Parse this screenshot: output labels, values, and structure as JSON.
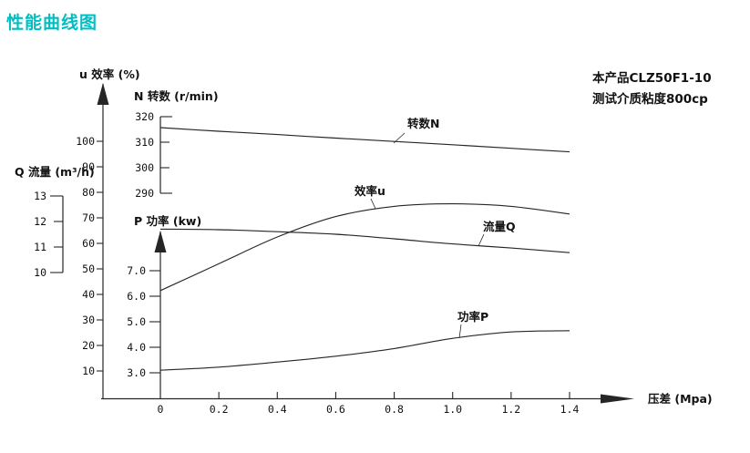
{
  "page": {
    "title": "性能曲线图",
    "title_color": "#00bec2"
  },
  "info": {
    "product": "本产品CLZ50F1-10",
    "medium": "测试介质粘度800cp"
  },
  "chart_data": {
    "type": "line",
    "title": "性能曲线图",
    "grid": false,
    "legend": "inline-labels",
    "x_axis": {
      "label": "压差 (Mpa)",
      "range": [
        0,
        1.4
      ],
      "ticks": [
        0,
        0.2,
        0.4,
        0.6,
        0.8,
        1.0,
        1.2,
        1.4
      ],
      "tick_labels": [
        "0",
        "0.2",
        "0.4",
        "0.6",
        "0.8",
        "1.0",
        "1.2",
        "1.4"
      ]
    },
    "y_axes": [
      {
        "id": "u",
        "label": "u 效率 (%)",
        "style": "arrow",
        "ticks": [
          100,
          90,
          80,
          70,
          60,
          50,
          40,
          30,
          20,
          10
        ],
        "tick_labels": [
          "100",
          "90",
          "80",
          "70",
          "60",
          "50",
          "40",
          "30",
          "20",
          "10"
        ],
        "range": [
          0,
          110
        ]
      },
      {
        "id": "N",
        "label": "N 转数 (r/min)",
        "style": "bracket",
        "ticks": [
          320,
          310,
          300,
          290
        ],
        "tick_labels": [
          "320",
          "310",
          "300",
          "290"
        ],
        "range": [
          290,
          320
        ]
      },
      {
        "id": "Q",
        "label": "Q 流量 (m³/h)",
        "style": "bracket",
        "ticks": [
          13,
          12,
          11,
          10
        ],
        "tick_labels": [
          "13",
          "12",
          "11",
          "10"
        ],
        "range": [
          10,
          13
        ]
      },
      {
        "id": "P",
        "label": "P 功率 (kw)",
        "style": "arrow",
        "ticks": [
          7.0,
          6.0,
          5.0,
          4.0,
          3.0
        ],
        "tick_labels": [
          "7.0",
          "6.0",
          "5.0",
          "4.0",
          "3.0"
        ],
        "range": [
          3,
          7.5
        ]
      }
    ],
    "x": [
      0,
      0.2,
      0.4,
      0.6,
      0.8,
      1.0,
      1.2,
      1.4
    ],
    "series": [
      {
        "id": "speed",
        "name": "转数N",
        "axis": "N",
        "values": [
          315.7,
          314.3,
          313.0,
          311.6,
          310.3,
          309.0,
          307.6,
          306.2
        ]
      },
      {
        "id": "efficiency",
        "name": "效率u",
        "axis": "u",
        "values": [
          41.5,
          52.0,
          62.5,
          70.5,
          74.5,
          75.5,
          74.5,
          71.5
        ]
      },
      {
        "id": "flow",
        "name": "流量Q",
        "axis": "Q",
        "values": [
          11.7,
          11.68,
          11.6,
          11.5,
          11.32,
          11.12,
          10.96,
          10.78
        ]
      },
      {
        "id": "power",
        "name": "功率P",
        "axis": "P",
        "values": [
          3.1,
          3.22,
          3.42,
          3.65,
          3.95,
          4.35,
          4.6,
          4.65
        ]
      }
    ]
  }
}
